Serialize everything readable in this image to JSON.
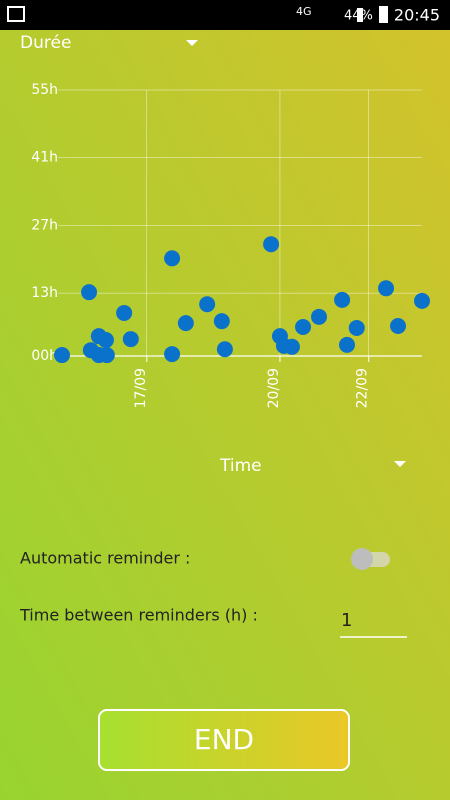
{
  "status_bar": {
    "network": "4G",
    "battery": "44%",
    "time": "20:45"
  },
  "dropdowns": {
    "metric": "Durée",
    "axis": "Time"
  },
  "chart_data": {
    "type": "scatter",
    "x": [
      15.09,
      15.7,
      15.74,
      15.92,
      15.92,
      16.08,
      16.1,
      16.49,
      16.64,
      17.57,
      17.57,
      17.88,
      18.36,
      18.69,
      18.76,
      19.8,
      20.0,
      20.09,
      20.27,
      20.52,
      20.88,
      21.4,
      21.51,
      21.73,
      22.39,
      22.66,
      23.2
    ],
    "values": [
      0.2,
      13.2,
      1.2,
      4.1,
      0.2,
      3.3,
      0.2,
      8.9,
      3.5,
      20.2,
      0.4,
      6.8,
      10.7,
      7.2,
      1.4,
      23.1,
      4.1,
      2.1,
      1.9,
      6.0,
      8.1,
      11.6,
      2.3,
      5.8,
      14.0,
      6.2,
      11.4
    ],
    "color": "#0b72cc",
    "xlim": [
      15,
      23.2
    ],
    "xticks": [
      {
        "value": 17,
        "label": "17/09"
      },
      {
        "value": 20,
        "label": "20/09"
      },
      {
        "value": 22,
        "label": "22/09"
      }
    ],
    "ylim": [
      0,
      55
    ],
    "yticks": [
      {
        "value": 0,
        "label": "00h"
      },
      {
        "value": 13,
        "label": "13h"
      },
      {
        "value": 27,
        "label": "27h"
      },
      {
        "value": 41,
        "label": "41h"
      },
      {
        "value": 55,
        "label": "55h"
      }
    ],
    "grid": true
  },
  "settings": {
    "reminder_label": "Automatic reminder :",
    "interval_label": "Time between reminders (h) :",
    "interval_value": "1"
  },
  "button": {
    "label": "END"
  }
}
